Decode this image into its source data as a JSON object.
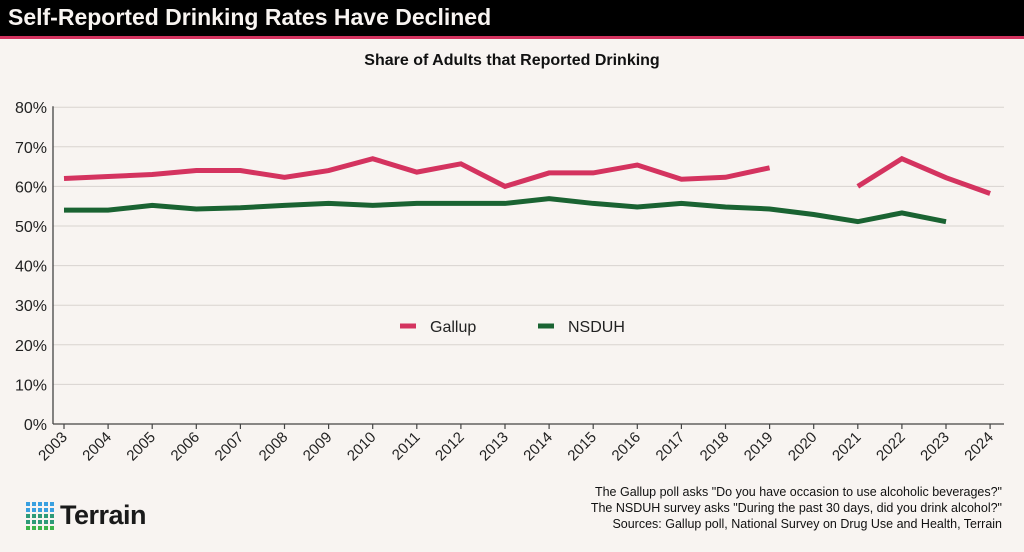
{
  "title": "Self-Reported Drinking Rates Have Declined",
  "brand": {
    "name": "Terrain",
    "accent": "#d4335f"
  },
  "notes": [
    "The Gallup poll asks \"Do you have occasion to use alcoholic beverages?\"",
    "The NSDUH survey asks \"During the past 30 days, did you drink alcohol?\"",
    "Sources: Gallup poll, National Survey on Drug Use and Health, Terrain"
  ],
  "chart_data": {
    "type": "line",
    "title": "Share of Adults that Reported Drinking",
    "xlabel": "",
    "ylabel": "",
    "x": [
      2003,
      2004,
      2005,
      2006,
      2007,
      2008,
      2009,
      2010,
      2011,
      2012,
      2013,
      2014,
      2015,
      2016,
      2017,
      2018,
      2019,
      2020,
      2021,
      2022,
      2023,
      2024
    ],
    "ylim": [
      0,
      80
    ],
    "yticks": [
      "0%",
      "10%",
      "20%",
      "30%",
      "40%",
      "50%",
      "60%",
      "70%",
      "80%"
    ],
    "grid": true,
    "legend_placement": "center",
    "series": [
      {
        "name": "Gallup",
        "color": "#d4335f",
        "values": [
          62,
          62.5,
          63,
          64,
          64,
          62.3,
          64,
          67,
          63.6,
          65.7,
          60,
          63.4,
          63.4,
          65.4,
          61.8,
          62.3,
          64.7,
          null,
          60,
          67,
          62.2,
          58.2
        ]
      },
      {
        "name": "NSDUH",
        "color": "#1a6332",
        "values": [
          54,
          54,
          55.2,
          54.3,
          54.6,
          55.2,
          55.7,
          55.2,
          55.7,
          55.7,
          55.7,
          56.9,
          55.7,
          54.8,
          55.7,
          54.8,
          54.3,
          52.9,
          51.1,
          53.3,
          51.1,
          null
        ]
      }
    ]
  }
}
